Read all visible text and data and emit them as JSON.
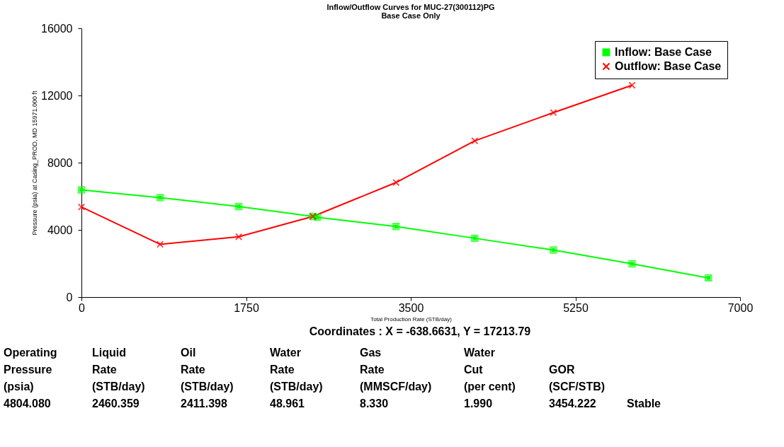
{
  "chart_data": {
    "type": "line",
    "title": "Inflow/Outflow Curves for MUC-27(300112)PG",
    "subtitle": "Base Case Only",
    "xlabel": "Total Production Rate (STB/day)",
    "ylabel": "Pressure (psia) at Casing_PROD, MD 15971.000 ft",
    "xlim": [
      0,
      7000
    ],
    "xticks": [
      0,
      1750,
      3500,
      5250,
      7000
    ],
    "ylim": [
      0,
      16000
    ],
    "yticks": [
      0,
      4000,
      8000,
      12000,
      16000
    ],
    "grid": false,
    "legend": "top right",
    "series": [
      {
        "name": "Inflow: Base Case",
        "color": "#00ff00",
        "marker": "square",
        "x": [
          0,
          836,
          1672,
          2460,
          2508,
          3344,
          4180,
          5016,
          5852,
          6664
        ],
        "values": [
          6380,
          5920,
          5390,
          4800,
          4750,
          4200,
          3500,
          2800,
          1980,
          1140
        ]
      },
      {
        "name": "Outflow: Base Case",
        "color": "#ff0000",
        "marker": "cross",
        "x": [
          0,
          836,
          1672,
          2460,
          3344,
          4180,
          5016,
          5852
        ],
        "values": [
          5360,
          3140,
          3590,
          4800,
          6820,
          9300,
          10980,
          12610
        ]
      }
    ],
    "annotations": [
      "Coordinates :  X = -638.6631,  Y = 17213.79",
      "Operating\nPressure\n(psia)\n4804.080",
      "Liquid\nRate\n(STB/day)\n2460.359",
      "Oil\nRate\n(STB/day)\n2411.398",
      "Water\nRate\n(STB/day)\n48.961",
      "Gas\nRate\n(MMSCF/day)\n8.330",
      "Water\nCut\n(per cent)\n1.990",
      "GOR\n(SCF/STB)\n3454.222",
      "Stable"
    ]
  }
}
